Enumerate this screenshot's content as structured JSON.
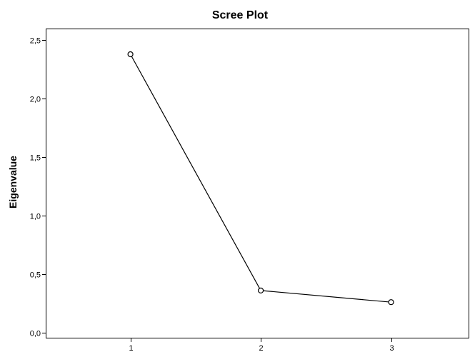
{
  "chart_data": {
    "type": "line",
    "title": "Scree Plot",
    "xlabel": "",
    "ylabel": "Eigenvalue",
    "x": [
      1,
      2,
      3
    ],
    "values": [
      2.38,
      0.36,
      0.26
    ],
    "xlim": [
      0.35,
      3.6
    ],
    "ylim": [
      -0.05,
      2.6
    ],
    "x_tick_labels": [
      "1",
      "2",
      "3"
    ],
    "y_ticks": [
      0.0,
      0.5,
      1.0,
      1.5,
      2.0,
      2.5
    ],
    "y_tick_labels": [
      "0,0",
      "0,5",
      "1,0",
      "1,5",
      "2,0",
      "2,5"
    ],
    "grid": false,
    "legend": "none",
    "colors": {
      "line": "#000000",
      "marker": "#000000",
      "frame": "#000000",
      "background": "#ffffff"
    }
  }
}
